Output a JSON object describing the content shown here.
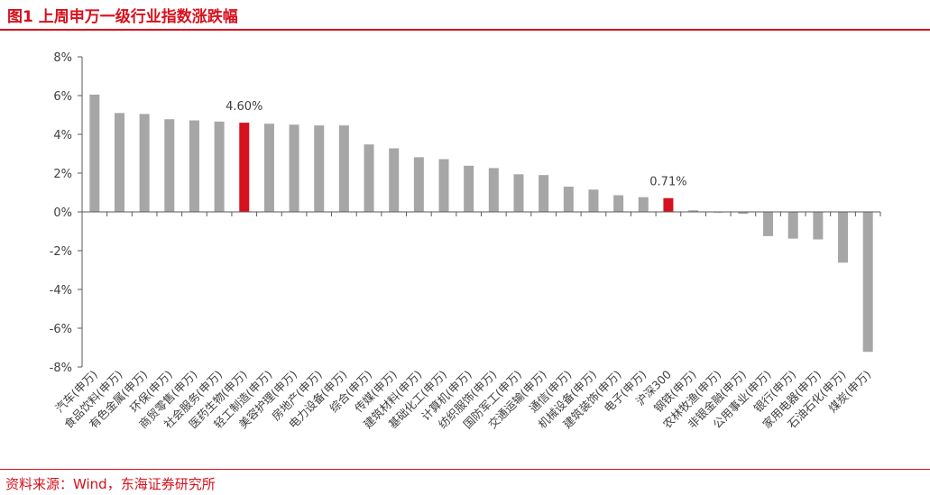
{
  "figure": {
    "title": "图1  上周申万一级行业指数涨跌幅",
    "source": "资料来源：Wind，东海证券研究所"
  },
  "colors": {
    "bar_default": "#a6a6a6",
    "bar_highlight": "#d7101d",
    "accent": "#d7101d",
    "axis": "#595959",
    "text": "#404040"
  },
  "chart_data": {
    "type": "bar",
    "categories": [
      "汽车(申万)",
      "食品饮料(申万)",
      "有色金属(申万)",
      "环保(申万)",
      "商贸零售(申万)",
      "社会服务(申万)",
      "医药生物(申万)",
      "轻工制造(申万)",
      "美容护理(申万)",
      "房地产(申万)",
      "电力设备(申万)",
      "综合(申万)",
      "传媒(申万)",
      "建筑材料(申万)",
      "基础化工(申万)",
      "计算机(申万)",
      "纺织服饰(申万)",
      "国防军工(申万)",
      "交通运输(申万)",
      "通信(申万)",
      "机械设备(申万)",
      "建筑装饰(申万)",
      "电子(申万)",
      "沪深300",
      "钢铁(申万)",
      "农林牧渔(申万)",
      "非银金融(申万)",
      "公用事业(申万)",
      "银行(申万)",
      "家用电器(申万)",
      "石油石化(申万)",
      "煤炭(申万)"
    ],
    "values": [
      6.05,
      5.1,
      5.05,
      4.78,
      4.72,
      4.66,
      4.6,
      4.55,
      4.5,
      4.46,
      4.46,
      3.48,
      3.28,
      2.82,
      2.72,
      2.38,
      2.26,
      1.94,
      1.9,
      1.3,
      1.15,
      0.86,
      0.76,
      0.71,
      0.08,
      -0.04,
      -0.1,
      -1.25,
      -1.38,
      -1.42,
      -2.62,
      -7.22
    ],
    "highlight_categories": [
      "医药生物(申万)",
      "沪深300"
    ],
    "data_labels": [
      {
        "category": "医药生物(申万)",
        "text": "4.60%"
      },
      {
        "category": "沪深300",
        "text": "0.71%"
      }
    ],
    "ylim": [
      -8,
      8
    ],
    "yticks": [
      8,
      6,
      4,
      2,
      0,
      -2,
      -4,
      -6,
      -8
    ],
    "ytick_labels": [
      "8%",
      "6%",
      "4%",
      "2%",
      "0%",
      "-2%",
      "-4%",
      "-6%",
      "-8%"
    ],
    "xlabel": "",
    "ylabel": "",
    "grid": false,
    "legend": "none"
  }
}
